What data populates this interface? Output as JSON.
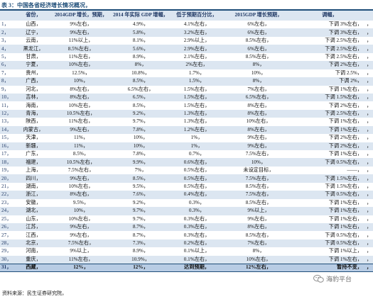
{
  "title": "表 3：中国各省经济增长情况概况，",
  "columns": [
    "",
    "省份，",
    "2014GDP 增长，预期，",
    "2014 年实际 GDP 增幅，",
    "低于预期百分比，",
    "2015GDP 增长预期，",
    "调幅，",
    ""
  ],
  "rows": [
    [
      "1，",
      "山西，",
      "9%左右，",
      "4.9%，",
      "4.1%左右，",
      "6%左右，",
      "下调 3%左右，",
      "，"
    ],
    [
      "2，",
      "辽宁，",
      "9%左右，",
      "5.8%，",
      "3.2%左右，",
      "6%左右，",
      "下调 3%左右，",
      "，"
    ],
    [
      "3，",
      "云南，",
      "11%以上，",
      "8.1%，",
      "2.9%以上，",
      "8.5%左右，",
      "下调 2.5%左右，",
      "，"
    ],
    [
      "4，",
      "黑龙江，",
      "8.5%左右，",
      "5.6%，",
      "2.9%左右，",
      "6%左右，",
      "下调 2.5%左右，",
      "，"
    ],
    [
      "5，",
      "甘肃，",
      "11%左右，",
      "8.9%，",
      "2.1%左右，",
      "8.5%左右，",
      "下调 2.5%左右，",
      "，"
    ],
    [
      "6，",
      "宁夏，",
      "10%左右，",
      "8%，",
      "2%左右，",
      "8%，",
      "下调 2%左右，",
      "，"
    ],
    [
      "7，",
      "贵州，",
      "12.5%，",
      "10.8%，",
      "1.7%，",
      "10%，",
      "下调 2.5%，",
      "，"
    ],
    [
      "8，",
      "广西，",
      "10%，",
      "8.5%，",
      "1.5%，",
      "8%，",
      "下调 2%，",
      "，"
    ],
    [
      "9，",
      "河北，",
      "8%左右，",
      "6.5%左右，",
      "1.5%左右，",
      "7%左右，",
      "下调 1%左右，",
      "，"
    ],
    [
      "10，",
      "吉林，",
      "8%左右，",
      "6.5%，",
      "1.5%左右，",
      "6.5%左右，",
      "下调 1.5%左右，",
      "，"
    ],
    [
      "11，",
      "海南，",
      "10%左右，",
      "8.5%，",
      "1.5%左右，",
      "8%左右，",
      "下调 2%左右，",
      "，"
    ],
    [
      "12，",
      "青海，",
      "10.5%左右，",
      "9.2%，",
      "1.3%左右，",
      "8%左右，",
      "下调 2.5%左右，",
      "，"
    ],
    [
      "13，",
      "陕西，",
      "11%左右，",
      "9.7%，",
      "1.3%左右，",
      "10%左右，",
      "下调 1%左右，",
      "，"
    ],
    [
      "14，",
      "内蒙古，",
      "9%左右，",
      "7.8%，",
      "1.2%左右，",
      "8%左右，",
      "下调 1%左右，",
      "，"
    ],
    [
      "15，",
      "天津，",
      "11%，",
      "10%，",
      "1%，",
      "9%左右，",
      "下调 2%左右，",
      "，"
    ],
    [
      "16，",
      "新疆，",
      "11%，",
      "10%，",
      "1%，",
      "9%左右，",
      "下调 2%左右，",
      "，"
    ],
    [
      "17，",
      "广东，",
      "8.5%，",
      "7.8%，",
      "0.7%，",
      "7.5%左右，",
      "下调 1%左右，",
      "，"
    ],
    [
      "18，",
      "福建，",
      "10.5%左右，",
      "9.9%，",
      "0.6%左右，",
      "10%，",
      "下调 0.5%左右，",
      "，"
    ],
    [
      "19，",
      "上海，",
      "7.5%左右，",
      "7%，",
      "0.5%左右，",
      "未设定目标，",
      "——，",
      "，"
    ],
    [
      "20，",
      "四川，",
      "9%左右，",
      "8.5%，",
      "0.5%左右，",
      "7.5%左右，",
      "下调 1.5%左右，",
      "，"
    ],
    [
      "21，",
      "湖南，",
      "10%左右，",
      "9.5%，",
      "0.5%左右，",
      "8.5%左右，",
      "下调 1.5%左右，",
      "，"
    ],
    [
      "22，",
      "浙江，",
      "8%左右，",
      "7.6%，",
      "0.4%左右，",
      "7.5%左右，",
      "下调 0.5%左右，",
      "，"
    ],
    [
      "23，",
      "安徽，",
      "9.5%，",
      "9.2%，",
      "0.3%，",
      "8.5%左右，",
      "下调 1%左右，",
      "，"
    ],
    [
      "24，",
      "湖北，",
      "10%，",
      "9.7%，",
      "0.3%，",
      "9%以上，",
      "下调 1%左右，",
      "，"
    ],
    [
      "25，",
      "山东，",
      "10%左右，",
      "9.7%，",
      "0.3%左右，",
      "9%左右，",
      "下调 1%左右，",
      "，"
    ],
    [
      "26，",
      "江苏，",
      "9%左右，",
      "8.7%，",
      "0.3%左右，",
      "8%左右，",
      "下调 1%左右，",
      "，"
    ],
    [
      "27，",
      "江西，",
      "9%左右，",
      "8.7%，",
      "0.3%左右，",
      "8.5%左右，",
      "下调 0.5%左右，",
      "，"
    ],
    [
      "28，",
      "北京，",
      "7.5%左右，",
      "7.3%，",
      "0.2%左右，",
      "7%左右，",
      "下调 0.5%左右，",
      "，"
    ],
    [
      "29，",
      "河南，",
      "9%以上，",
      "8.9%，",
      "0.1%以上，",
      "8%，",
      "下调 1%以上，",
      "，"
    ],
    [
      "30，",
      "重庆，",
      "11%左右，",
      "10.9%，",
      "0.1%左右，",
      "10%左右，",
      "下调 1%左右，",
      "，"
    ],
    [
      "31，",
      "西藏，",
      "12%，",
      "12%，",
      "达到预期，",
      "12%左右，",
      "暂持不变，",
      "，"
    ]
  ],
  "source": "资料来源：民生证券研究院，",
  "watermark": "海豹平台"
}
